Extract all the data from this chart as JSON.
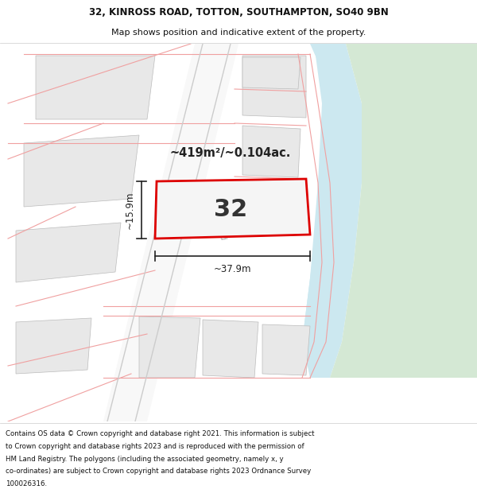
{
  "title_line1": "32, KINROSS ROAD, TOTTON, SOUTHAMPTON, SO40 9BN",
  "title_line2": "Map shows position and indicative extent of the property.",
  "footer_lines": [
    "Contains OS data © Crown copyright and database right 2021. This information is subject",
    "to Crown copyright and database rights 2023 and is reproduced with the permission of",
    "HM Land Registry. The polygons (including the associated geometry, namely x, y",
    "co-ordinates) are subject to Crown copyright and database rights 2023 Ordnance Survey",
    "100026316."
  ],
  "area_label": "~419m²/~0.104ac.",
  "property_number": "32",
  "dim_width": "~37.9m",
  "dim_height": "~15.9m",
  "map_bg": "#ffffff",
  "building_fill": "#e8e8e8",
  "building_edge": "#bbbbbb",
  "property_fill": "#f0f0f0",
  "property_outline": "#dd0000",
  "road_line_color": "#f0a0a0",
  "road_fill": "#ffffff",
  "water_color": "#cce8f0",
  "green_color": "#d4e8d4",
  "road_label_color": "#aaaaaa",
  "dim_color": "#222222",
  "title_fontsize": 8.5,
  "footer_fontsize": 6.2
}
